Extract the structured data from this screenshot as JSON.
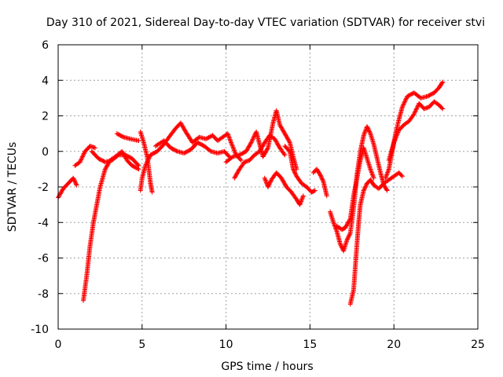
{
  "chart_data": {
    "type": "scatter",
    "title": "Day 310 of 2021, Sidereal Day-to-day VTEC variation (SDTVAR) for receiver stvi",
    "xlabel": "GPS time / hours",
    "ylabel": "SDTVAR / TECUs",
    "xlim": [
      0,
      25
    ],
    "ylim": [
      -10,
      6
    ],
    "xticks": [
      0,
      5,
      10,
      15,
      20,
      25
    ],
    "yticks": [
      -10,
      -8,
      -6,
      -4,
      -2,
      0,
      2,
      4,
      6
    ],
    "grid": true,
    "legend": "none",
    "marker": "+",
    "series": [
      {
        "name": "SDTVAR",
        "color": "#ff0000",
        "tracks": [
          [
            [
              0,
              -2.6
            ],
            [
              0.3,
              -2.1
            ],
            [
              0.6,
              -1.8
            ],
            [
              0.9,
              -1.5
            ],
            [
              1.1,
              -1.9
            ]
          ],
          [
            [
              1.0,
              -0.8
            ],
            [
              1.3,
              -0.6
            ],
            [
              1.6,
              0.0
            ],
            [
              1.9,
              0.3
            ],
            [
              2.2,
              0.2
            ]
          ],
          [
            [
              1.5,
              -8.4
            ],
            [
              1.7,
              -7.0
            ],
            [
              1.9,
              -5.3
            ],
            [
              2.1,
              -4.0
            ],
            [
              2.3,
              -3.0
            ],
            [
              2.5,
              -2.0
            ],
            [
              2.8,
              -1.0
            ],
            [
              3.1,
              -0.5
            ],
            [
              3.4,
              -0.3
            ],
            [
              3.8,
              0.0
            ],
            [
              4.1,
              -0.5
            ],
            [
              4.4,
              -0.8
            ],
            [
              4.8,
              -1.0
            ]
          ],
          [
            [
              2.0,
              0.0
            ],
            [
              2.4,
              -0.4
            ],
            [
              2.8,
              -0.6
            ],
            [
              3.2,
              -0.5
            ],
            [
              3.6,
              -0.2
            ],
            [
              4.0,
              -0.2
            ],
            [
              4.4,
              -0.4
            ],
            [
              4.8,
              -0.8
            ]
          ],
          [
            [
              3.5,
              1.0
            ],
            [
              3.9,
              0.8
            ],
            [
              4.3,
              0.7
            ],
            [
              4.8,
              0.6
            ]
          ],
          [
            [
              4.9,
              1.1
            ],
            [
              5.1,
              0.5
            ],
            [
              5.3,
              -0.3
            ],
            [
              5.4,
              -1.0
            ],
            [
              5.5,
              -1.8
            ],
            [
              5.6,
              -2.3
            ]
          ],
          [
            [
              4.9,
              -2.2
            ],
            [
              5.0,
              -1.5
            ],
            [
              5.2,
              -0.8
            ],
            [
              5.5,
              -0.2
            ],
            [
              5.9,
              0.0
            ],
            [
              6.3,
              0.4
            ],
            [
              6.6,
              0.8
            ],
            [
              7.0,
              1.3
            ],
            [
              7.3,
              1.6
            ],
            [
              7.6,
              1.1
            ],
            [
              8.0,
              0.5
            ],
            [
              8.4,
              0.8
            ],
            [
              8.8,
              0.7
            ],
            [
              9.2,
              0.9
            ],
            [
              9.5,
              0.6
            ],
            [
              9.8,
              0.8
            ],
            [
              10.1,
              1.0
            ],
            [
              10.3,
              0.5
            ],
            [
              10.6,
              -0.2
            ],
            [
              10.9,
              -0.5
            ]
          ],
          [
            [
              5.8,
              0.3
            ],
            [
              6.3,
              0.6
            ],
            [
              6.7,
              0.2
            ],
            [
              7.1,
              0.0
            ],
            [
              7.5,
              -0.1
            ],
            [
              7.9,
              0.1
            ],
            [
              8.3,
              0.5
            ],
            [
              8.7,
              0.3
            ],
            [
              9.1,
              0.0
            ],
            [
              9.5,
              -0.1
            ],
            [
              9.9,
              0.0
            ],
            [
              10.2,
              -0.3
            ]
          ],
          [
            [
              10.0,
              -0.6
            ],
            [
              10.4,
              -0.3
            ],
            [
              10.8,
              -0.2
            ],
            [
              11.2,
              0.0
            ],
            [
              11.5,
              0.5
            ],
            [
              11.8,
              1.1
            ],
            [
              12.0,
              0.4
            ],
            [
              12.2,
              -0.3
            ],
            [
              12.5,
              0.2
            ],
            [
              12.8,
              1.6
            ],
            [
              13.0,
              2.3
            ],
            [
              13.2,
              1.5
            ],
            [
              13.5,
              1.0
            ],
            [
              13.8,
              0.5
            ],
            [
              14.0,
              -0.3
            ],
            [
              14.2,
              -1.0
            ]
          ],
          [
            [
              10.5,
              -1.5
            ],
            [
              10.8,
              -1.0
            ],
            [
              11.1,
              -0.6
            ],
            [
              11.4,
              -0.5
            ],
            [
              11.7,
              -0.2
            ],
            [
              12.0,
              0.0
            ],
            [
              12.3,
              0.5
            ],
            [
              12.6,
              0.9
            ],
            [
              12.9,
              0.7
            ],
            [
              13.2,
              0.2
            ],
            [
              13.5,
              -0.2
            ]
          ],
          [
            [
              12.3,
              -1.5
            ],
            [
              12.5,
              -2.0
            ],
            [
              12.7,
              -1.6
            ],
            [
              13.0,
              -1.2
            ],
            [
              13.3,
              -1.5
            ],
            [
              13.6,
              -2.0
            ],
            [
              13.9,
              -2.3
            ],
            [
              14.2,
              -2.7
            ],
            [
              14.4,
              -3.0
            ],
            [
              14.6,
              -2.5
            ]
          ],
          [
            [
              13.5,
              0.3
            ],
            [
              13.8,
              0.0
            ],
            [
              14.0,
              -1.0
            ],
            [
              14.2,
              -1.4
            ],
            [
              14.5,
              -1.8
            ],
            [
              14.8,
              -2.0
            ],
            [
              15.1,
              -2.3
            ],
            [
              15.3,
              -2.2
            ]
          ],
          [
            [
              15.2,
              -1.2
            ],
            [
              15.4,
              -1.0
            ],
            [
              15.6,
              -1.3
            ],
            [
              15.8,
              -1.7
            ],
            [
              16.0,
              -2.5
            ]
          ],
          [
            [
              16.2,
              -3.4
            ],
            [
              16.4,
              -4.0
            ],
            [
              16.6,
              -4.5
            ],
            [
              16.8,
              -5.2
            ],
            [
              17.0,
              -5.6
            ],
            [
              17.2,
              -5.0
            ],
            [
              17.4,
              -4.6
            ],
            [
              17.6,
              -3.2
            ],
            [
              17.8,
              -1.3
            ],
            [
              18.0,
              0.0
            ],
            [
              18.2,
              0.9
            ],
            [
              18.4,
              1.4
            ],
            [
              18.6,
              1.0
            ],
            [
              18.8,
              0.4
            ],
            [
              19.0,
              -0.4
            ],
            [
              19.2,
              -1.2
            ],
            [
              19.4,
              -1.9
            ],
            [
              19.6,
              -2.2
            ]
          ],
          [
            [
              16.6,
              -4.2
            ],
            [
              16.9,
              -4.4
            ],
            [
              17.1,
              -4.3
            ],
            [
              17.4,
              -3.8
            ],
            [
              17.6,
              -2.5
            ],
            [
              17.8,
              -1.5
            ],
            [
              18.0,
              -0.5
            ],
            [
              18.2,
              0.2
            ],
            [
              18.4,
              -0.4
            ],
            [
              18.6,
              -1.0
            ],
            [
              18.8,
              -1.5
            ]
          ],
          [
            [
              17.4,
              -8.6
            ],
            [
              17.6,
              -7.8
            ],
            [
              17.7,
              -6.5
            ],
            [
              17.8,
              -5.2
            ],
            [
              17.9,
              -4.0
            ],
            [
              18.0,
              -3.0
            ],
            [
              18.2,
              -2.2
            ],
            [
              18.4,
              -1.8
            ],
            [
              18.6,
              -1.6
            ],
            [
              18.8,
              -1.9
            ],
            [
              19.1,
              -2.1
            ],
            [
              19.4,
              -1.8
            ],
            [
              19.7,
              -1.6
            ],
            [
              20.0,
              -1.4
            ],
            [
              20.3,
              -1.2
            ],
            [
              20.5,
              -1.4
            ]
          ],
          [
            [
              19.5,
              -1.5
            ],
            [
              19.7,
              -1.0
            ],
            [
              19.9,
              0.0
            ],
            [
              20.1,
              1.0
            ],
            [
              20.3,
              1.8
            ],
            [
              20.5,
              2.5
            ],
            [
              20.8,
              3.1
            ],
            [
              21.2,
              3.3
            ],
            [
              21.6,
              3.0
            ],
            [
              22.0,
              3.1
            ],
            [
              22.4,
              3.3
            ],
            [
              22.7,
              3.6
            ],
            [
              22.9,
              3.9
            ]
          ],
          [
            [
              19.7,
              -0.5
            ],
            [
              20.0,
              0.5
            ],
            [
              20.3,
              1.2
            ],
            [
              20.6,
              1.5
            ],
            [
              20.9,
              1.7
            ],
            [
              21.2,
              2.1
            ],
            [
              21.5,
              2.7
            ],
            [
              21.8,
              2.4
            ],
            [
              22.1,
              2.5
            ],
            [
              22.4,
              2.8
            ],
            [
              22.7,
              2.6
            ],
            [
              22.9,
              2.4
            ]
          ]
        ]
      }
    ]
  }
}
